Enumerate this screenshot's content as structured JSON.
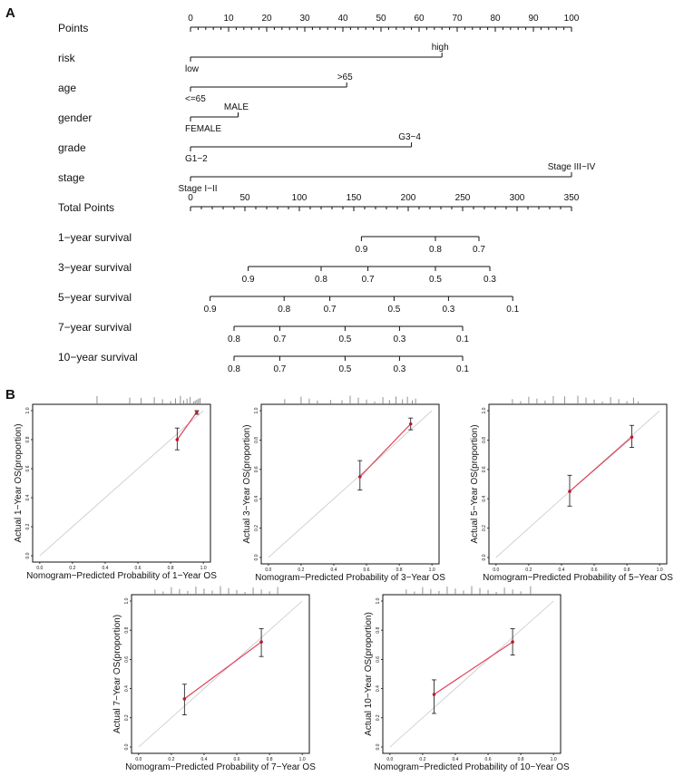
{
  "panel_labels": {
    "a": "A",
    "b": "B"
  },
  "chart_data": [
    {
      "type": "nomogram",
      "panel": "A",
      "rows": [
        {
          "label": "Points",
          "kind": "axis",
          "min": 0,
          "max": 100,
          "major_step": 10,
          "minor_step": 2,
          "tick_labels": [
            "0",
            "10",
            "20",
            "30",
            "40",
            "50",
            "60",
            "70",
            "80",
            "90",
            "100"
          ]
        },
        {
          "label": "risk",
          "kind": "predictor",
          "levels": [
            {
              "text": "low",
              "points": 0
            },
            {
              "text": "high",
              "points": 66
            }
          ]
        },
        {
          "label": "age",
          "kind": "predictor",
          "levels": [
            {
              "text": "<=65",
              "points": 0
            },
            {
              "text": ">65",
              "points": 41
            }
          ]
        },
        {
          "label": "gender",
          "kind": "predictor",
          "levels": [
            {
              "text": "FEMALE",
              "points": 0
            },
            {
              "text": "MALE",
              "points": 12.5
            }
          ]
        },
        {
          "label": "grade",
          "kind": "predictor",
          "levels": [
            {
              "text": "G1−2",
              "points": 0
            },
            {
              "text": "G3−4",
              "points": 58
            }
          ]
        },
        {
          "label": "stage",
          "kind": "predictor",
          "levels": [
            {
              "text": "Stage I−II",
              "points": 0
            },
            {
              "text": "Stage III−IV",
              "points": 100
            }
          ]
        },
        {
          "label": "Total Points",
          "kind": "axis",
          "min": 0,
          "max": 350,
          "major_step": 50,
          "minor_step": 10,
          "tick_labels": [
            "0",
            "50",
            "100",
            "150",
            "200",
            "250",
            "300",
            "350"
          ]
        },
        {
          "label": "1−year survival",
          "kind": "scale",
          "ticks": [
            {
              "text": "0.9",
              "total": 157
            },
            {
              "text": "0.8",
              "total": 225
            },
            {
              "text": "0.7",
              "total": 265
            }
          ]
        },
        {
          "label": "3−year survival",
          "kind": "scale",
          "ticks": [
            {
              "text": "0.9",
              "total": 53
            },
            {
              "text": "0.8",
              "total": 120
            },
            {
              "text": "0.7",
              "total": 163
            },
            {
              "text": "0.5",
              "total": 225
            },
            {
              "text": "0.3",
              "total": 275
            }
          ]
        },
        {
          "label": "5−year survival",
          "kind": "scale",
          "ticks": [
            {
              "text": "0.9",
              "total": 18
            },
            {
              "text": "0.8",
              "total": 86
            },
            {
              "text": "0.7",
              "total": 128
            },
            {
              "text": "0.5",
              "total": 187
            },
            {
              "text": "0.3",
              "total": 237
            },
            {
              "text": "0.1",
              "total": 296
            }
          ]
        },
        {
          "label": "7−year survival",
          "kind": "scale",
          "ticks": [
            {
              "text": "0.8",
              "total": 40
            },
            {
              "text": "0.7",
              "total": 82
            },
            {
              "text": "0.5",
              "total": 142
            },
            {
              "text": "0.3",
              "total": 192
            },
            {
              "text": "0.1",
              "total": 250
            }
          ]
        },
        {
          "label": "10−year survival",
          "kind": "scale",
          "ticks": [
            {
              "text": "0.8",
              "total": 40
            },
            {
              "text": "0.7",
              "total": 82
            },
            {
              "text": "0.5",
              "total": 142
            },
            {
              "text": "0.3",
              "total": 192
            },
            {
              "text": "0.1",
              "total": 250
            }
          ]
        }
      ]
    },
    {
      "type": "calibration",
      "panel": "B1",
      "xlabel": "Nomogram−Predicted Probability of 1−Year OS",
      "ylabel": "Actual 1−Year OS(proportion)",
      "xlim": [
        0,
        1
      ],
      "ylim": [
        0,
        1
      ],
      "x_ticks": [
        "0.0",
        "0.2",
        "0.4",
        "0.6",
        "0.8",
        "1.0"
      ],
      "y_ticks": [
        "0.0",
        "0.2",
        "0.4",
        "0.6",
        "0.8",
        "1.0"
      ],
      "points": [
        {
          "x": 0.84,
          "y": 0.8,
          "lo": 0.73,
          "hi": 0.88
        },
        {
          "x": 0.96,
          "y": 0.99,
          "lo": 0.975,
          "hi": 1.0
        }
      ],
      "rug": [
        0.35,
        0.55,
        0.62,
        0.7,
        0.75,
        0.8,
        0.83,
        0.86,
        0.88,
        0.9,
        0.92,
        0.94,
        0.95,
        0.96,
        0.97,
        0.98
      ]
    },
    {
      "type": "calibration",
      "panel": "B2",
      "xlabel": "Nomogram−Predicted Probability of 3−Year OS",
      "ylabel": "Actual 3−Year OS(proportion)",
      "xlim": [
        0,
        1
      ],
      "ylim": [
        0,
        1
      ],
      "x_ticks": [
        "0.0",
        "0.2",
        "0.4",
        "0.6",
        "0.8",
        "1.0"
      ],
      "y_ticks": [
        "0.0",
        "0.2",
        "0.4",
        "0.6",
        "0.8",
        "1.0"
      ],
      "points": [
        {
          "x": 0.56,
          "y": 0.55,
          "lo": 0.46,
          "hi": 0.66
        },
        {
          "x": 0.87,
          "y": 0.91,
          "lo": 0.87,
          "hi": 0.95
        }
      ],
      "rug": [
        0.1,
        0.2,
        0.25,
        0.3,
        0.38,
        0.45,
        0.5,
        0.55,
        0.6,
        0.65,
        0.7,
        0.74,
        0.78,
        0.82,
        0.85,
        0.88,
        0.9
      ]
    },
    {
      "type": "calibration",
      "panel": "B3",
      "xlabel": "Nomogram−Predicted Probability of 5−Year OS",
      "ylabel": "Actual 5−Year OS(proportion)",
      "xlim": [
        0,
        1
      ],
      "ylim": [
        0,
        1
      ],
      "x_ticks": [
        "0.0",
        "0.2",
        "0.4",
        "0.6",
        "0.8",
        "1.0"
      ],
      "y_ticks": [
        "0.0",
        "0.2",
        "0.4",
        "0.6",
        "0.8",
        "1.0"
      ],
      "points": [
        {
          "x": 0.45,
          "y": 0.45,
          "lo": 0.35,
          "hi": 0.56
        },
        {
          "x": 0.83,
          "y": 0.82,
          "lo": 0.75,
          "hi": 0.9
        }
      ],
      "rug": [
        0.1,
        0.15,
        0.2,
        0.25,
        0.3,
        0.35,
        0.42,
        0.5,
        0.55,
        0.6,
        0.65,
        0.7,
        0.75,
        0.8,
        0.84,
        0.87
      ]
    },
    {
      "type": "calibration",
      "panel": "B4",
      "xlabel": "Nomogram−Predicted Probability of 7−Year OS",
      "ylabel": "Actual 7−Year OS(proportion)",
      "xlim": [
        0,
        1
      ],
      "ylim": [
        0,
        1
      ],
      "x_ticks": [
        "0.0",
        "0.2",
        "0.4",
        "0.6",
        "0.8",
        "1.0"
      ],
      "y_ticks": [
        "0.0",
        "0.2",
        "0.4",
        "0.6",
        "0.8",
        "1.0"
      ],
      "points": [
        {
          "x": 0.28,
          "y": 0.33,
          "lo": 0.22,
          "hi": 0.43
        },
        {
          "x": 0.75,
          "y": 0.72,
          "lo": 0.62,
          "hi": 0.81
        }
      ],
      "rug": [
        0.1,
        0.15,
        0.2,
        0.25,
        0.3,
        0.35,
        0.4,
        0.45,
        0.5,
        0.55,
        0.6,
        0.65,
        0.7,
        0.75,
        0.8,
        0.85
      ]
    },
    {
      "type": "calibration",
      "panel": "B5",
      "xlabel": "Nomogram−Predicted Probability of 10−Year OS",
      "ylabel": "Actual 10−Year OS(proportion)",
      "xlim": [
        0,
        1
      ],
      "ylim": [
        0,
        1
      ],
      "x_ticks": [
        "0.0",
        "0.2",
        "0.4",
        "0.6",
        "0.8",
        "1.0"
      ],
      "y_ticks": [
        "0.0",
        "0.2",
        "0.4",
        "0.6",
        "0.8",
        "1.0"
      ],
      "points": [
        {
          "x": 0.27,
          "y": 0.36,
          "lo": 0.23,
          "hi": 0.46
        },
        {
          "x": 0.75,
          "y": 0.72,
          "lo": 0.63,
          "hi": 0.81
        }
      ],
      "rug": [
        0.1,
        0.15,
        0.2,
        0.25,
        0.3,
        0.35,
        0.4,
        0.45,
        0.5,
        0.55,
        0.6,
        0.65,
        0.7,
        0.75,
        0.8,
        0.86
      ]
    }
  ],
  "colors": {
    "axis": "#111111",
    "fit_line": "#e0405a",
    "diagonal": "#c8c8c8",
    "rug": "#777777",
    "point": "#c0182e"
  }
}
